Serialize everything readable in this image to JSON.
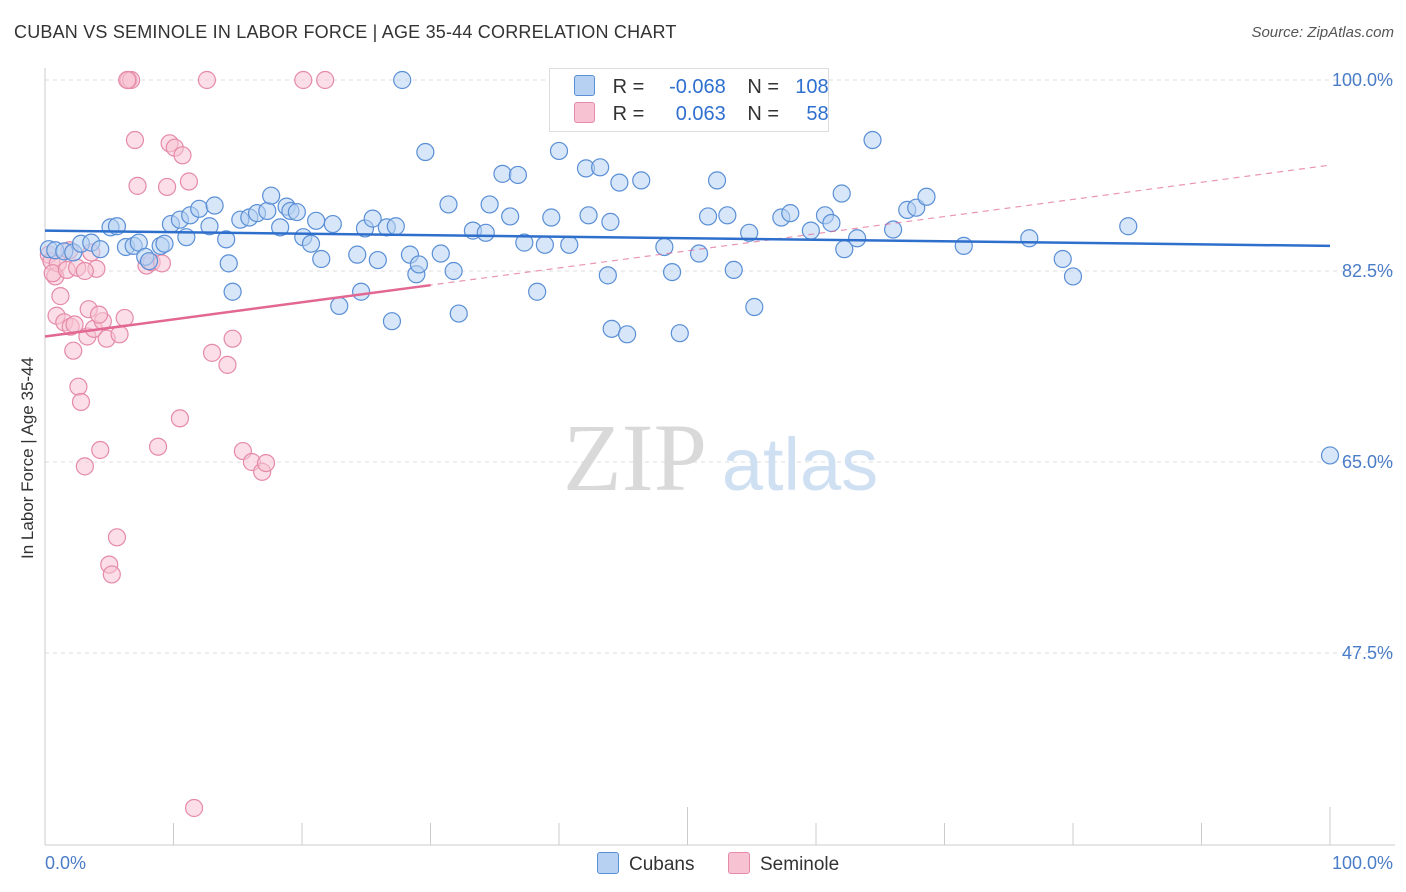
{
  "header": {
    "title": "CUBAN VS SEMINOLE IN LABOR FORCE | AGE 35-44 CORRELATION CHART",
    "source": "Source: ZipAtlas.com"
  },
  "legend_box": {
    "rows": [
      {
        "r_label": "R =",
        "r_value": "-0.068",
        "n_label": "N =",
        "n_value": "108"
      },
      {
        "r_label": "R =",
        "r_value": "0.063",
        "n_label": "N =",
        "n_value": "58"
      }
    ]
  },
  "watermark": {
    "zip": "ZIP",
    "atlas": "atlas"
  },
  "colors": {
    "cubans_fill": "#b7d1f3",
    "cubans_stroke": "#5a8fd6",
    "cubans_line": "#2f6fcc",
    "seminole_fill": "#f7c3d3",
    "seminole_stroke": "#e58aa8",
    "seminole_line": "#e26793",
    "axis_text": "#4a7cc7",
    "grid": "#dddddd"
  },
  "chart_data": {
    "type": "scatter",
    "title": "CUBAN VS SEMINOLE IN LABOR FORCE | AGE 35-44 CORRELATION CHART",
    "xlabel": "",
    "ylabel": "In Labor Force | Age 35-44",
    "xlim": [
      0,
      100
    ],
    "ylim": [
      30,
      102
    ],
    "x_tick_labels": [
      "0.0%",
      "100.0%"
    ],
    "y_ticks": [
      47.5,
      65.0,
      82.5,
      100.0
    ],
    "y_tick_labels": [
      "47.5%",
      "65.0%",
      "82.5%",
      "100.0%"
    ],
    "grid": true,
    "legend": [
      "Cubans",
      "Seminole"
    ],
    "series": [
      {
        "name": "Cubans",
        "r": -0.068,
        "n": 108,
        "trend": {
          "x": [
            0,
            100
          ],
          "y": [
            86.2,
            84.8
          ]
        },
        "points": [
          [
            0.3,
            84.5
          ],
          [
            0.8,
            84.4
          ],
          [
            1.5,
            84.3
          ],
          [
            2.2,
            84.2
          ],
          [
            2.8,
            85.0
          ],
          [
            3.6,
            85.1
          ],
          [
            4.3,
            84.5
          ],
          [
            5.1,
            86.5
          ],
          [
            5.6,
            86.6
          ],
          [
            6.3,
            84.7
          ],
          [
            6.9,
            84.8
          ],
          [
            7.3,
            85.1
          ],
          [
            7.8,
            83.8
          ],
          [
            8.1,
            83.4
          ],
          [
            9.0,
            84.8
          ],
          [
            9.8,
            86.8
          ],
          [
            9.3,
            85.0
          ],
          [
            10.5,
            87.2
          ],
          [
            11.0,
            85.6
          ],
          [
            11.3,
            87.6
          ],
          [
            12.0,
            88.2
          ],
          [
            12.8,
            86.6
          ],
          [
            13.2,
            88.5
          ],
          [
            14.1,
            85.4
          ],
          [
            14.3,
            83.2
          ],
          [
            14.6,
            80.6
          ],
          [
            15.2,
            87.2
          ],
          [
            15.9,
            87.4
          ],
          [
            16.5,
            87.8
          ],
          [
            17.3,
            88.0
          ],
          [
            17.6,
            89.4
          ],
          [
            18.3,
            86.5
          ],
          [
            18.8,
            88.4
          ],
          [
            19.1,
            88.0
          ],
          [
            19.6,
            87.9
          ],
          [
            20.1,
            85.6
          ],
          [
            20.7,
            85.0
          ],
          [
            21.1,
            87.1
          ],
          [
            21.5,
            83.6
          ],
          [
            22.4,
            86.8
          ],
          [
            22.9,
            79.3
          ],
          [
            24.3,
            84.0
          ],
          [
            24.6,
            80.6
          ],
          [
            24.9,
            86.4
          ],
          [
            25.5,
            87.3
          ],
          [
            25.9,
            83.5
          ],
          [
            26.6,
            86.5
          ],
          [
            27.0,
            77.9
          ],
          [
            27.3,
            86.6
          ],
          [
            27.8,
            100.0
          ],
          [
            28.4,
            84.0
          ],
          [
            28.9,
            82.2
          ],
          [
            29.1,
            83.1
          ],
          [
            29.6,
            93.4
          ],
          [
            30.8,
            84.1
          ],
          [
            31.4,
            88.6
          ],
          [
            31.8,
            82.5
          ],
          [
            32.2,
            78.6
          ],
          [
            33.3,
            86.2
          ],
          [
            34.3,
            86.0
          ],
          [
            34.6,
            88.6
          ],
          [
            35.6,
            91.4
          ],
          [
            36.2,
            87.5
          ],
          [
            36.8,
            91.3
          ],
          [
            37.3,
            85.1
          ],
          [
            38.3,
            80.6
          ],
          [
            38.9,
            84.9
          ],
          [
            39.4,
            87.4
          ],
          [
            40.0,
            93.5
          ],
          [
            40.8,
            84.9
          ],
          [
            42.1,
            91.9
          ],
          [
            42.3,
            87.6
          ],
          [
            43.2,
            92.0
          ],
          [
            43.8,
            82.1
          ],
          [
            44.0,
            87.0
          ],
          [
            44.1,
            77.2
          ],
          [
            44.7,
            90.6
          ],
          [
            45.3,
            76.7
          ],
          [
            46.4,
            90.8
          ],
          [
            48.2,
            84.7
          ],
          [
            48.8,
            82.4
          ],
          [
            49.4,
            76.8
          ],
          [
            50.9,
            84.1
          ],
          [
            51.6,
            87.5
          ],
          [
            52.3,
            90.8
          ],
          [
            53.1,
            87.6
          ],
          [
            53.6,
            82.6
          ],
          [
            54.8,
            86.0
          ],
          [
            55.2,
            79.2
          ],
          [
            57.3,
            87.4
          ],
          [
            58.0,
            87.8
          ],
          [
            59.6,
            86.2
          ],
          [
            60.7,
            87.6
          ],
          [
            61.2,
            86.9
          ],
          [
            62.0,
            89.6
          ],
          [
            62.2,
            84.5
          ],
          [
            63.2,
            85.5
          ],
          [
            64.4,
            94.5
          ],
          [
            66.0,
            86.3
          ],
          [
            67.1,
            88.1
          ],
          [
            67.8,
            88.3
          ],
          [
            68.6,
            89.3
          ],
          [
            71.5,
            84.8
          ],
          [
            76.6,
            85.5
          ],
          [
            79.2,
            83.6
          ],
          [
            80.0,
            82.0
          ],
          [
            84.3,
            86.6
          ],
          [
            100.0,
            65.6
          ]
        ]
      },
      {
        "name": "Seminole",
        "r": 0.063,
        "n": 58,
        "trend": {
          "x": [
            0,
            30
          ],
          "y": [
            76.5,
            81.2
          ]
        },
        "trend_extended": {
          "x": [
            0,
            100
          ],
          "y": [
            76.5,
            92.2
          ]
        },
        "points": [
          [
            0.3,
            84.0
          ],
          [
            0.5,
            83.4
          ],
          [
            0.8,
            82.0
          ],
          [
            1.0,
            83.2
          ],
          [
            0.6,
            82.3
          ],
          [
            0.9,
            78.4
          ],
          [
            1.2,
            80.2
          ],
          [
            1.5,
            77.8
          ],
          [
            1.7,
            82.6
          ],
          [
            1.9,
            84.4
          ],
          [
            2.0,
            77.4
          ],
          [
            2.3,
            77.6
          ],
          [
            2.5,
            82.8
          ],
          [
            2.2,
            75.2
          ],
          [
            2.6,
            71.9
          ],
          [
            2.8,
            70.5
          ],
          [
            3.1,
            64.6
          ],
          [
            3.3,
            76.5
          ],
          [
            3.6,
            84.2
          ],
          [
            3.4,
            79.0
          ],
          [
            3.8,
            77.2
          ],
          [
            4.0,
            82.7
          ],
          [
            4.3,
            66.1
          ],
          [
            4.5,
            77.9
          ],
          [
            4.8,
            76.3
          ],
          [
            4.2,
            78.5
          ],
          [
            3.1,
            82.5
          ],
          [
            5.0,
            55.6
          ],
          [
            5.2,
            54.7
          ],
          [
            5.6,
            58.1
          ],
          [
            5.8,
            76.7
          ],
          [
            6.2,
            78.2
          ],
          [
            6.5,
            100.0
          ],
          [
            6.7,
            100.0
          ],
          [
            6.4,
            100.0
          ],
          [
            7.0,
            94.5
          ],
          [
            7.2,
            90.3
          ],
          [
            7.9,
            83.0
          ],
          [
            8.3,
            83.3
          ],
          [
            8.8,
            66.4
          ],
          [
            9.1,
            83.2
          ],
          [
            9.5,
            90.2
          ],
          [
            9.7,
            94.2
          ],
          [
            10.1,
            93.8
          ],
          [
            10.5,
            69.0
          ],
          [
            10.7,
            93.1
          ],
          [
            11.2,
            90.7
          ],
          [
            11.6,
            33.3
          ],
          [
            12.6,
            100.0
          ],
          [
            13.0,
            75.0
          ],
          [
            14.2,
            73.9
          ],
          [
            14.6,
            76.3
          ],
          [
            15.4,
            66.0
          ],
          [
            16.1,
            65.0
          ],
          [
            16.9,
            64.1
          ],
          [
            17.2,
            64.9
          ],
          [
            20.1,
            100.0
          ],
          [
            21.8,
            100.0
          ]
        ]
      }
    ]
  },
  "bottom_legend": {
    "cubans": "Cubans",
    "seminole": "Seminole"
  }
}
